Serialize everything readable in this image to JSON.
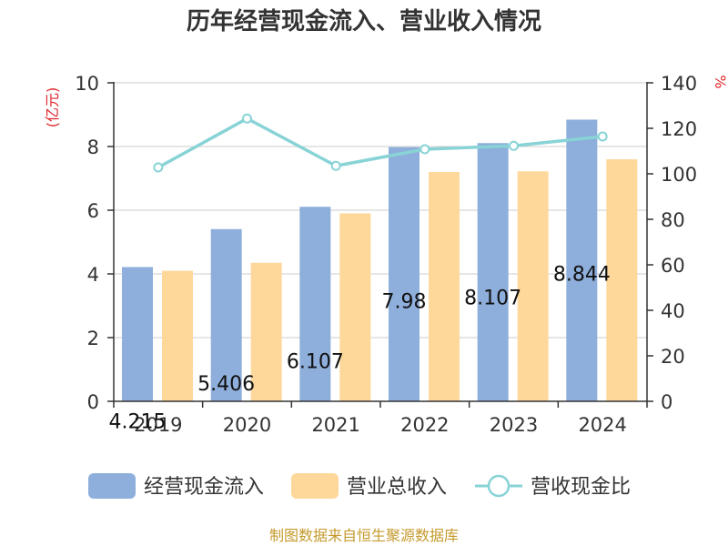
{
  "chart_data": {
    "type": "bar",
    "title": "历年经营现金流入、营业收入情况",
    "categories": [
      "2019",
      "2020",
      "2021",
      "2022",
      "2023",
      "2024"
    ],
    "series": [
      {
        "name": "经营现金流入",
        "kind": "bar",
        "axis": "left",
        "color": "#8eaedb",
        "values": [
          4.215,
          5.406,
          6.107,
          7.98,
          8.107,
          8.844
        ],
        "labels": [
          "4.215",
          "5.406",
          "6.107",
          "7.98",
          "8.107",
          "8.844"
        ]
      },
      {
        "name": "营业总收入",
        "kind": "bar",
        "axis": "left",
        "color": "#fed89b",
        "values": [
          4.1,
          4.35,
          5.9,
          7.2,
          7.22,
          7.6
        ]
      },
      {
        "name": "营收现金比",
        "kind": "line",
        "axis": "right",
        "color": "#88d3d6",
        "values": [
          102.8,
          124.3,
          103.5,
          110.8,
          112.3,
          116.4
        ]
      }
    ],
    "y_left": {
      "unit": "(亿元)",
      "ylim": [
        0,
        10
      ],
      "ticks": [
        "0",
        "2",
        "4",
        "6",
        "8",
        "10"
      ]
    },
    "y_right": {
      "unit": "%",
      "ylim": [
        0,
        140
      ],
      "ticks": [
        "0",
        "20",
        "40",
        "60",
        "80",
        "100",
        "120",
        "140"
      ]
    },
    "grid": true,
    "legend_position": "bottom"
  },
  "source": "制图数据来自恒生聚源数据库"
}
